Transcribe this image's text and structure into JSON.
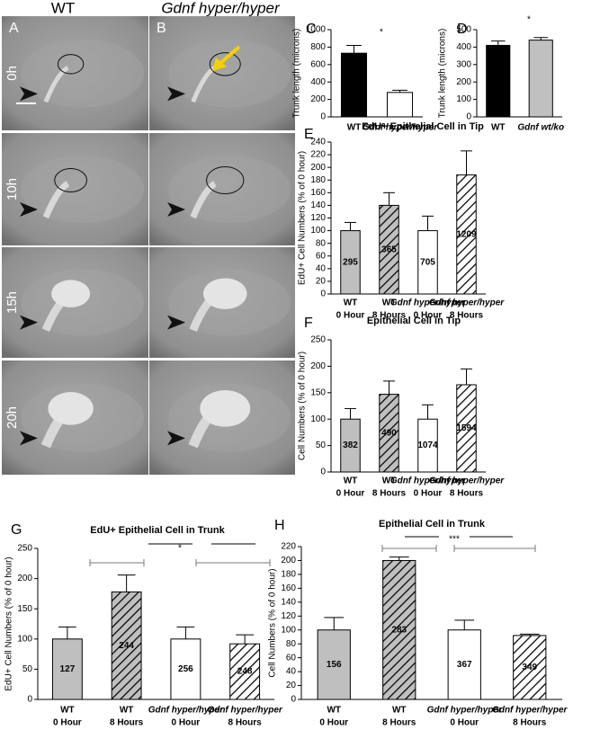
{
  "panels": {
    "column_headers": [
      "WT",
      "Gdnf hyper/hyper"
    ],
    "panel_letters": [
      "A",
      "B"
    ],
    "row_labels": [
      "0h",
      "10h",
      "15h",
      "20h"
    ]
  },
  "chart_data": [
    {
      "letter": "C",
      "type": "bar",
      "ylabel": "Trunk length (microns)",
      "categories": [
        "WT",
        "Gdnf hyper/hyper"
      ],
      "values": [
        730,
        280
      ],
      "errors": [
        90,
        25
      ],
      "colors": [
        "#000000",
        "#ffffff"
      ],
      "hatched": [
        false,
        false
      ],
      "ylim": [
        0,
        1000
      ],
      "yticks": [
        0,
        200,
        400,
        600,
        800,
        1000
      ],
      "significance": "*"
    },
    {
      "letter": "D",
      "type": "bar",
      "ylabel": "Trunk length (microns)",
      "categories": [
        "WT",
        "Gdnf wt/ko"
      ],
      "values": [
        410,
        440
      ],
      "errors": [
        25,
        15
      ],
      "colors": [
        "#000000",
        "#c0c0c0"
      ],
      "hatched": [
        false,
        false
      ],
      "ylim": [
        0,
        500
      ],
      "yticks": [
        0,
        100,
        200,
        300,
        400,
        500
      ],
      "significance": "*"
    },
    {
      "letter": "E",
      "type": "bar",
      "title": "EdU+ Epithelial Cell in Tip",
      "ylabel": "EdU+ Cell Numbers  (% of 0 hour)",
      "categories": [
        "WT",
        "WT",
        "Gdnf hyper/hyper",
        "Gdnf hyper/hyper"
      ],
      "subcategories": [
        "0 Hour",
        "8 Hours",
        "0 Hour",
        "8 Hours"
      ],
      "values": [
        100,
        140,
        100,
        188
      ],
      "errors": [
        13,
        20,
        23,
        38
      ],
      "bar_labels": [
        295,
        365,
        705,
        1209
      ],
      "colors": [
        "#bfbfbf",
        "#bfbfbf",
        "#ffffff",
        "#ffffff"
      ],
      "hatched": [
        false,
        true,
        false,
        true
      ],
      "ylim": [
        0,
        240
      ],
      "yticks": [
        0,
        20,
        40,
        60,
        80,
        100,
        120,
        140,
        160,
        180,
        200,
        220,
        240
      ]
    },
    {
      "letter": "F",
      "type": "bar",
      "title": "Epithelial Cell in Tip",
      "ylabel": "Cell Numbers (% of 0 hour)",
      "categories": [
        "WT",
        "WT",
        "Gdnf hyper/hyper",
        "Gdnf hyper/hyper"
      ],
      "subcategories": [
        "0 Hour",
        "8 Hours",
        "0 Hour",
        "8 Hours"
      ],
      "values": [
        100,
        147,
        100,
        165
      ],
      "errors": [
        20,
        25,
        27,
        30
      ],
      "bar_labels": [
        382,
        490,
        1074,
        1594
      ],
      "colors": [
        "#bfbfbf",
        "#bfbfbf",
        "#ffffff",
        "#ffffff"
      ],
      "hatched": [
        false,
        true,
        false,
        true
      ],
      "ylim": [
        0,
        250
      ],
      "yticks": [
        0,
        50,
        100,
        150,
        200,
        250
      ]
    },
    {
      "letter": "G",
      "type": "bar",
      "title": "EdU+ Epithelial Cell in Trunk",
      "ylabel": "EdU+ Cell Numbers  (% of 0 hour)",
      "categories": [
        "WT",
        "WT",
        "Gdnf hyper/hyper",
        "Gdnf hyper/hyper"
      ],
      "subcategories": [
        "0 Hour",
        "8 Hours",
        "0 Hour",
        "8 Hours"
      ],
      "values": [
        100,
        178,
        100,
        92
      ],
      "errors": [
        20,
        28,
        20,
        15
      ],
      "bar_labels": [
        127,
        244,
        256,
        248
      ],
      "colors": [
        "#bfbfbf",
        "#bfbfbf",
        "#ffffff",
        "#ffffff"
      ],
      "hatched": [
        false,
        true,
        false,
        true
      ],
      "ylim": [
        0,
        250
      ],
      "yticks": [
        0,
        50,
        100,
        150,
        200,
        250
      ],
      "significance": "*"
    },
    {
      "letter": "H",
      "type": "bar",
      "title": "Epithelial Cell in Trunk",
      "ylabel": "Cell Numbers (% of 0 hour)",
      "categories": [
        "WT",
        "WT",
        "Gdnf hyper/hyper",
        "Gdnf hyper/hyper"
      ],
      "subcategories": [
        "0 Hour",
        "8 Hours",
        "0 Hour",
        "8 Hours"
      ],
      "values": [
        100,
        200,
        100,
        92
      ],
      "errors": [
        18,
        5,
        14,
        2
      ],
      "bar_labels": [
        156,
        283,
        367,
        349
      ],
      "colors": [
        "#bfbfbf",
        "#bfbfbf",
        "#ffffff",
        "#ffffff"
      ],
      "hatched": [
        false,
        true,
        false,
        true
      ],
      "ylim": [
        0,
        220
      ],
      "yticks": [
        0,
        20,
        40,
        60,
        80,
        100,
        120,
        140,
        160,
        180,
        200,
        220
      ],
      "significance": "***"
    }
  ]
}
